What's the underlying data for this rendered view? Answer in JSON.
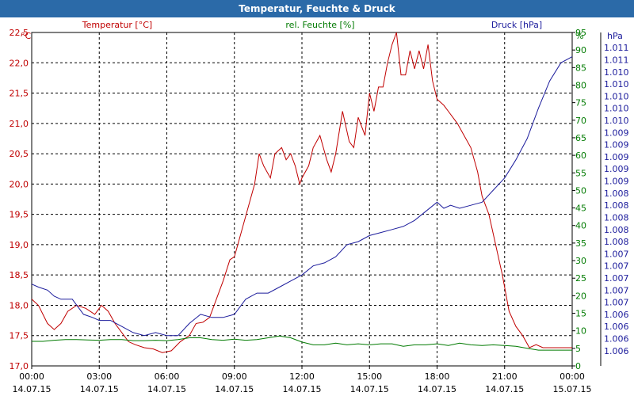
{
  "window": {
    "title": "Temperatur, Feuchte & Druck"
  },
  "chart_data": {
    "type": "line",
    "title": "Temperatur, Feuchte & Druck",
    "x_ticks": [
      {
        "hours": 0,
        "time": "00:00",
        "date": "14.07.15"
      },
      {
        "hours": 3,
        "time": "03:00",
        "date": "14.07.15"
      },
      {
        "hours": 6,
        "time": "06:00",
        "date": "14.07.15"
      },
      {
        "hours": 9,
        "time": "09:00",
        "date": "14.07.15"
      },
      {
        "hours": 12,
        "time": "12:00",
        "date": "14.07.15"
      },
      {
        "hours": 15,
        "time": "15:00",
        "date": "14.07.15"
      },
      {
        "hours": 18,
        "time": "18:00",
        "date": "14.07.15"
      },
      {
        "hours": 21,
        "time": "21:00",
        "date": "14.07.15"
      },
      {
        "hours": 24,
        "time": "00:00",
        "date": "15.07.15"
      }
    ],
    "xlim_hours": [
      0,
      24
    ],
    "grid": true,
    "axes": {
      "temperature": {
        "unit": "°C",
        "color": "#c00000",
        "ylim": [
          17.0,
          22.5
        ],
        "ticks": [
          "17,0",
          "17,5",
          "18,0",
          "18,5",
          "19,0",
          "19,5",
          "20,0",
          "20,5",
          "21,0",
          "21,5",
          "22,0",
          "22,5"
        ]
      },
      "humidity": {
        "unit": "%",
        "color": "#007a00",
        "ylim": [
          0,
          95
        ],
        "ticks": [
          "0",
          "5",
          "10",
          "15",
          "20",
          "25",
          "30",
          "35",
          "40",
          "45",
          "50",
          "55",
          "60",
          "65",
          "70",
          "75",
          "80",
          "85",
          "90",
          "95"
        ]
      },
      "pressure": {
        "unit": "hPa",
        "color": "#1c1c9c",
        "ylim": [
          1005.75,
          1011.25
        ],
        "ticks": [
          "1.006",
          "1.006",
          "1.006",
          "1.006",
          "1.007",
          "1.007",
          "1.007",
          "1.007",
          "1.007",
          "1.008",
          "1.008",
          "1.008",
          "1.008",
          "1.008",
          "1.009",
          "1.009",
          "1.009",
          "1.009",
          "1.009",
          "1.010",
          "1.010",
          "1.010",
          "1.010",
          "1.010",
          "1.011",
          "1.011"
        ]
      }
    },
    "series": [
      {
        "name": "Temperatur [°C]",
        "axis": "temperature",
        "color": "#c00000",
        "x": [
          0,
          0.3,
          0.7,
          1.0,
          1.3,
          1.6,
          2.0,
          2.4,
          2.8,
          3.1,
          3.4,
          3.7,
          4.0,
          4.3,
          4.6,
          5.0,
          5.4,
          5.8,
          6.2,
          6.6,
          7.0,
          7.3,
          7.6,
          7.9,
          8.2,
          8.5,
          8.8,
          9.0,
          9.3,
          9.6,
          9.9,
          10.1,
          10.3,
          10.6,
          10.8,
          11.1,
          11.3,
          11.5,
          11.7,
          11.9,
          12.0,
          12.3,
          12.5,
          12.8,
          13.1,
          13.3,
          13.5,
          13.8,
          14.1,
          14.3,
          14.5,
          14.8,
          15.0,
          15.2,
          15.4,
          15.6,
          15.8,
          16.0,
          16.2,
          16.4,
          16.6,
          16.8,
          17.0,
          17.2,
          17.4,
          17.6,
          17.8,
          18.0,
          18.3,
          18.5,
          18.7,
          18.9,
          19.2,
          19.5,
          19.8,
          20.0,
          20.3,
          20.6,
          20.9,
          21.2,
          21.5,
          21.8,
          22.1,
          22.4,
          22.7,
          22.9,
          23.2,
          23.5,
          23.8,
          24.0
        ],
        "values": [
          18.1,
          18.0,
          17.7,
          17.6,
          17.7,
          17.9,
          18.0,
          17.95,
          17.85,
          18.0,
          17.9,
          17.7,
          17.55,
          17.4,
          17.35,
          17.3,
          17.28,
          17.22,
          17.25,
          17.4,
          17.5,
          17.7,
          17.72,
          17.8,
          18.1,
          18.4,
          18.75,
          18.8,
          19.2,
          19.6,
          20.0,
          20.5,
          20.3,
          20.1,
          20.5,
          20.6,
          20.4,
          20.5,
          20.3,
          20.0,
          20.1,
          20.3,
          20.6,
          20.8,
          20.4,
          20.2,
          20.5,
          21.2,
          20.7,
          20.6,
          21.1,
          20.8,
          21.5,
          21.2,
          21.6,
          21.6,
          22.0,
          22.3,
          22.5,
          21.8,
          21.8,
          22.2,
          21.9,
          22.2,
          21.9,
          22.3,
          21.7,
          21.4,
          21.3,
          21.2,
          21.1,
          21.0,
          20.8,
          20.6,
          20.2,
          19.8,
          19.5,
          19.0,
          18.5,
          17.9,
          17.65,
          17.5,
          17.3,
          17.35,
          17.3,
          17.3,
          17.3,
          17.3,
          17.3,
          17.3
        ]
      },
      {
        "name": "rel. Feuchte [%]",
        "axis": "humidity",
        "color": "#007a00",
        "x": [
          0,
          0.5,
          1,
          1.5,
          2,
          2.5,
          3,
          3.5,
          4,
          4.5,
          5,
          5.5,
          6,
          6.5,
          7,
          7.5,
          8,
          8.5,
          9,
          9.5,
          10,
          10.5,
          11,
          11.5,
          12,
          12.5,
          13,
          13.5,
          14,
          14.5,
          15,
          15.5,
          16,
          16.5,
          17,
          17.5,
          18,
          18.5,
          19,
          19.5,
          20,
          20.5,
          21,
          21.5,
          22,
          22.5,
          23,
          23.5,
          24
        ],
        "values": [
          7,
          7,
          7.3,
          7.5,
          7.5,
          7.4,
          7.3,
          7.5,
          7.5,
          7.2,
          7.2,
          7.3,
          7.2,
          7.5,
          8,
          8,
          7.5,
          7.3,
          7.6,
          7.3,
          7.5,
          8,
          8.5,
          8,
          6.8,
          6,
          6,
          6.5,
          6,
          6.3,
          6,
          6.3,
          6.3,
          5.6,
          6,
          6,
          6.3,
          5.8,
          6.5,
          6,
          5.8,
          6,
          5.8,
          5.6,
          5,
          4.5,
          4.5,
          4.5,
          4.5
        ]
      },
      {
        "name": "Druck [hPa]",
        "axis": "pressure",
        "color": "#1c1c9c",
        "x": [
          0,
          0.3,
          0.7,
          1.0,
          1.3,
          1.8,
          2.3,
          2.7,
          3.0,
          3.5,
          4.0,
          4.5,
          5.0,
          5.5,
          6.0,
          6.5,
          7.0,
          7.5,
          8.0,
          8.5,
          9.0,
          9.5,
          10.0,
          10.5,
          11.0,
          11.5,
          12.0,
          12.5,
          13.0,
          13.5,
          14.0,
          14.5,
          15.0,
          15.5,
          16.0,
          16.5,
          17.0,
          17.5,
          18.0,
          18.3,
          18.6,
          19.0,
          19.5,
          20.0,
          20.5,
          21.0,
          21.5,
          22.0,
          22.5,
          23.0,
          23.5,
          24.0
        ],
        "values": [
          1007.1,
          1007.05,
          1007.0,
          1006.9,
          1006.85,
          1006.85,
          1006.6,
          1006.55,
          1006.5,
          1006.5,
          1006.4,
          1006.3,
          1006.25,
          1006.3,
          1006.25,
          1006.25,
          1006.45,
          1006.6,
          1006.55,
          1006.55,
          1006.6,
          1006.85,
          1006.95,
          1006.95,
          1007.05,
          1007.15,
          1007.25,
          1007.4,
          1007.45,
          1007.55,
          1007.75,
          1007.8,
          1007.9,
          1007.95,
          1008.0,
          1008.05,
          1008.15,
          1008.3,
          1008.45,
          1008.35,
          1008.4,
          1008.35,
          1008.4,
          1008.45,
          1008.65,
          1008.85,
          1009.15,
          1009.5,
          1010.0,
          1010.45,
          1010.75,
          1010.85
        ]
      }
    ]
  }
}
